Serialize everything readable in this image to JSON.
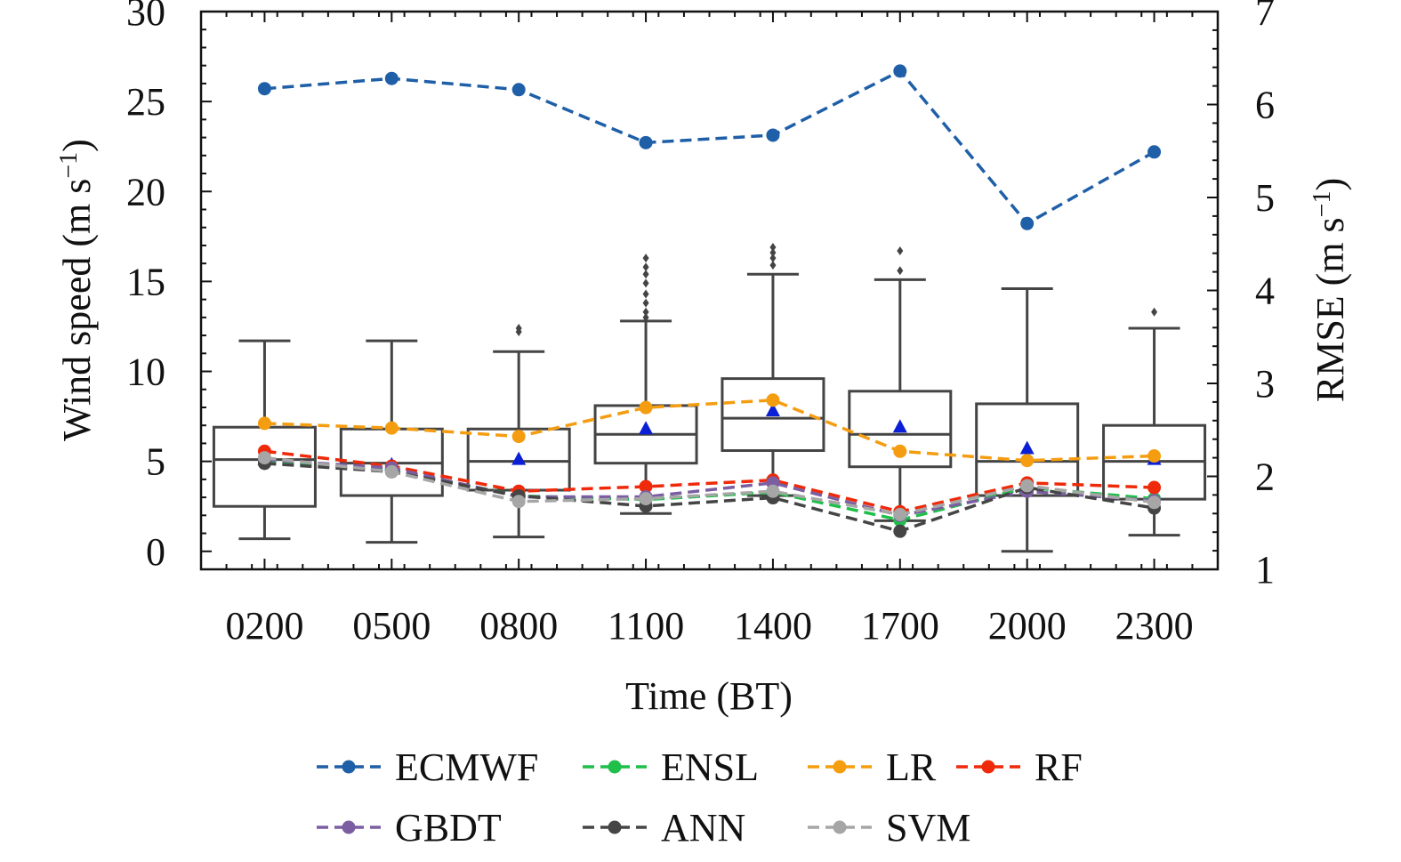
{
  "chart_data": {
    "type": "box",
    "categories": [
      "0200",
      "0500",
      "0800",
      "1100",
      "1400",
      "1700",
      "2000",
      "2300"
    ],
    "xlabel": "Time (BT)",
    "ylabel_main": "Wind speed (m s",
    "ylabel_right_main": "RMSE (m s",
    "unit_superscript": "−1",
    "unit_close": ")",
    "ylim": [
      -1,
      30
    ],
    "y_ticks": [
      "0",
      "5",
      "10",
      "15",
      "20",
      "25",
      "30"
    ],
    "y2lim": [
      1,
      7
    ],
    "y2_ticks": [
      "1",
      "2",
      "3",
      "4",
      "5",
      "6",
      "7"
    ],
    "boxplot": {
      "whisker_low": [
        0.7,
        0.5,
        0.8,
        2.1,
        3.1,
        1.7,
        0.0,
        0.9
      ],
      "q1": [
        2.5,
        3.1,
        3.4,
        4.9,
        5.6,
        4.7,
        3.1,
        2.9
      ],
      "median": [
        5.1,
        4.9,
        5.0,
        6.5,
        7.4,
        6.5,
        5.0,
        5.0
      ],
      "q3": [
        6.9,
        6.8,
        6.8,
        8.1,
        9.6,
        8.9,
        8.2,
        7.0
      ],
      "whisker_high": [
        11.7,
        11.7,
        11.1,
        12.8,
        15.4,
        15.1,
        14.6,
        12.4
      ],
      "mean": [
        5.1,
        4.8,
        5.1,
        6.8,
        7.8,
        6.9,
        5.7,
        5.1
      ],
      "outliers": [
        [],
        [],
        [
          12.2,
          12.4
        ],
        [
          13.0,
          13.3,
          13.8,
          14.3,
          14.9,
          15.4,
          15.8,
          16.3
        ],
        [
          15.9,
          16.3,
          16.6,
          16.9
        ],
        [
          15.6,
          16.7
        ],
        [],
        [
          13.3
        ]
      ]
    },
    "series": [
      {
        "name": "ECMWF",
        "color": "#1f5fa8",
        "values": [
          6.17,
          6.28,
          6.16,
          5.59,
          5.67,
          6.36,
          4.72,
          5.49
        ]
      },
      {
        "name": "ENSL",
        "color": "#1fbf4a",
        "values": [
          2.16,
          2.07,
          1.79,
          1.75,
          1.83,
          1.53,
          1.88,
          1.76
        ]
      },
      {
        "name": "LR",
        "color": "#f59d11",
        "values": [
          2.57,
          2.52,
          2.43,
          2.74,
          2.82,
          2.27,
          2.17,
          2.22
        ]
      },
      {
        "name": "RF",
        "color": "#ee2a0a",
        "values": [
          2.27,
          2.11,
          1.84,
          1.89,
          1.96,
          1.62,
          1.93,
          1.88
        ]
      },
      {
        "name": "GBDT",
        "color": "#7b5ea2",
        "values": [
          2.18,
          2.09,
          1.78,
          1.78,
          1.93,
          1.58,
          1.84,
          1.74
        ]
      },
      {
        "name": "ANN",
        "color": "#454545",
        "values": [
          2.14,
          2.05,
          1.79,
          1.68,
          1.77,
          1.41,
          1.88,
          1.66
        ]
      },
      {
        "name": "SVM",
        "color": "#a6a6a6",
        "values": [
          2.2,
          2.05,
          1.73,
          1.76,
          1.84,
          1.59,
          1.9,
          1.72
        ]
      }
    ],
    "legend_position": "bottom",
    "grid": false
  }
}
